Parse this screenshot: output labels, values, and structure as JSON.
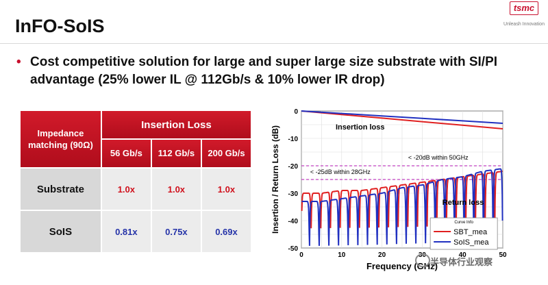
{
  "slide": {
    "title": "InFO-SoIS",
    "logo_text": "tsmc",
    "logo_tagline": "Unleash Innovation",
    "bullet": "Cost competitive solution for large and super large size substrate with SI/PI advantage (25% lower IL @ 112Gb/s & 10% lower IR drop)",
    "watermark": "半导体行业观察"
  },
  "table": {
    "header_impedance": "Impedance matching (90Ω)",
    "header_insertion_loss": "Insertion Loss",
    "subheaders": [
      "56 Gb/s",
      "112 Gb/s",
      "200 Gb/s"
    ],
    "rows": [
      {
        "label": "Substrate",
        "values": [
          "1.0x",
          "1.0x",
          "1.0x"
        ]
      },
      {
        "label": "SoIS",
        "values": [
          "0.81x",
          "0.75x",
          "0.69x"
        ]
      }
    ]
  },
  "chart_data": {
    "type": "line",
    "xlabel": "Frequency (GHz)",
    "ylabel": "Insertion / Return Loss (dB)",
    "xlim": [
      0,
      50
    ],
    "ylim": [
      -50,
      0
    ],
    "x_ticks": [
      "0",
      "10",
      "20",
      "30",
      "40",
      "50"
    ],
    "y_ticks": [
      "0",
      "-10",
      "-20",
      "-30",
      "-40",
      "-50"
    ],
    "grid": true,
    "legend": {
      "title": "Curve Info",
      "placement": "bottom-right"
    },
    "annotations": [
      {
        "text": "Insertion loss"
      },
      {
        "text": "Return loss"
      },
      {
        "text": "< -20dB within 50GHz",
        "y": -20
      },
      {
        "text": "< -25dB within 28GHz",
        "y": -25
      }
    ],
    "reference_lines": [
      {
        "y": -20,
        "color": "#c040c0",
        "style": "dashed"
      },
      {
        "y": -25,
        "color": "#c040c0",
        "style": "dashed"
      }
    ],
    "series": [
      {
        "name": "SBT_mea",
        "kind": "insertion",
        "color": "#e02020",
        "x": [
          0,
          10,
          20,
          30,
          40,
          50
        ],
        "values": [
          0,
          -1.3,
          -2.6,
          -3.9,
          -5.2,
          -6.5
        ]
      },
      {
        "name": "SoIS_mea",
        "kind": "insertion",
        "color": "#2030c0",
        "x": [
          0,
          10,
          20,
          30,
          40,
          50
        ],
        "values": [
          0,
          -0.9,
          -1.8,
          -2.7,
          -3.6,
          -4.5
        ]
      },
      {
        "name": "SBT_mea",
        "kind": "return",
        "color": "#e02020",
        "x": [
          0,
          5,
          10,
          15,
          20,
          25,
          30,
          35,
          40,
          45,
          50
        ],
        "values": [
          -30,
          -30,
          -29,
          -29,
          -28,
          -27,
          -26,
          -25,
          -24,
          -23,
          -22
        ],
        "ripple_min": -45
      },
      {
        "name": "SoIS_mea",
        "kind": "return",
        "color": "#2030c0",
        "x": [
          0,
          5,
          10,
          15,
          20,
          25,
          30,
          35,
          40,
          45,
          50
        ],
        "values": [
          -33,
          -33,
          -32,
          -31,
          -30,
          -28,
          -27,
          -25,
          -24,
          -22,
          -21
        ],
        "ripple_min": -52
      }
    ]
  }
}
